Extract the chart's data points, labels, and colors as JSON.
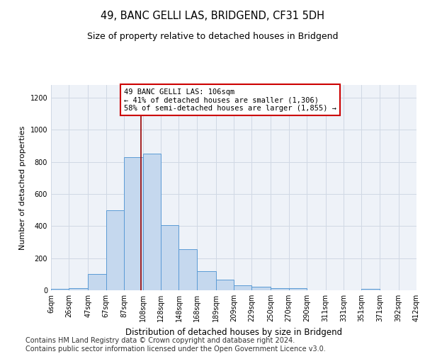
{
  "title": "49, BANC GELLI LAS, BRIDGEND, CF31 5DH",
  "subtitle": "Size of property relative to detached houses in Bridgend",
  "xlabel": "Distribution of detached houses by size in Bridgend",
  "ylabel": "Number of detached properties",
  "bar_color": "#c5d8ee",
  "bar_edge_color": "#5b9bd5",
  "background_color": "#ffffff",
  "plot_bg_color": "#eef2f8",
  "grid_color": "#d0d8e4",
  "vline_x": 106,
  "vline_color": "#990000",
  "annotation_text": "49 BANC GELLI LAS: 106sqm\n← 41% of detached houses are smaller (1,306)\n58% of semi-detached houses are larger (1,855) →",
  "annotation_box_color": "#ffffff",
  "annotation_box_edge": "#cc0000",
  "bin_edges": [
    6,
    26,
    47,
    67,
    87,
    108,
    128,
    148,
    168,
    189,
    209,
    229,
    250,
    270,
    290,
    311,
    331,
    351,
    371,
    392,
    412
  ],
  "bar_heights": [
    10,
    15,
    100,
    500,
    830,
    850,
    405,
    255,
    120,
    65,
    32,
    20,
    13,
    13,
    0,
    0,
    0,
    10,
    0,
    0
  ],
  "ylim": [
    0,
    1280
  ],
  "yticks": [
    0,
    200,
    400,
    600,
    800,
    1000,
    1200
  ],
  "footer": "Contains HM Land Registry data © Crown copyright and database right 2024.\nContains public sector information licensed under the Open Government Licence v3.0.",
  "footer_fontsize": 7,
  "title_fontsize": 10.5,
  "subtitle_fontsize": 9,
  "ylabel_fontsize": 8,
  "xlabel_fontsize": 8.5,
  "tick_fontsize": 7,
  "annotation_fontsize": 7.5
}
